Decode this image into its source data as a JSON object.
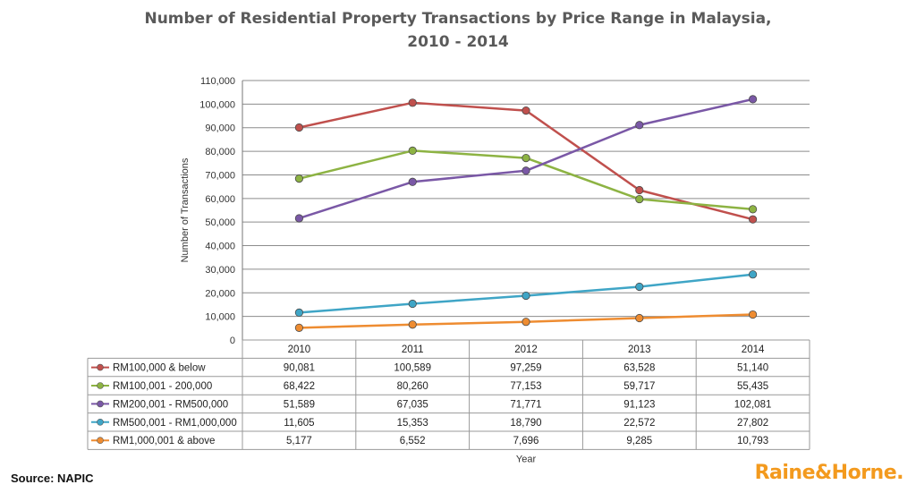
{
  "title_line1": "Number of Residential Property Transactions by Price Range in Malaysia,",
  "title_line2": "2010 - 2014",
  "source": "Source: NAPIC",
  "brand": "Raine&Horne.",
  "chart_data": {
    "type": "line",
    "title": "Number of Residential Property Transactions by Price Range in Malaysia, 2010 - 2014",
    "xlabel": "Year",
    "ylabel": "Number of Transactions",
    "ylim": [
      0,
      110000
    ],
    "yticks": [
      "0",
      "10,000",
      "20,000",
      "30,000",
      "40,000",
      "50,000",
      "60,000",
      "70,000",
      "80,000",
      "90,000",
      "100,000",
      "110,000"
    ],
    "grid": true,
    "legend": "data table below chart",
    "categories": [
      "2010",
      "2011",
      "2012",
      "2013",
      "2014"
    ],
    "series": [
      {
        "name": "RM100,000 & below",
        "color": "#c0504d",
        "values": [
          90081,
          100589,
          97259,
          63528,
          51140
        ],
        "labels": [
          "90,081",
          "100,589",
          "97,259",
          "63,528",
          "51,140"
        ]
      },
      {
        "name": "RM100,001 - 200,000",
        "color": "#8db343",
        "values": [
          68422,
          80260,
          77153,
          59717,
          55435
        ],
        "labels": [
          "68,422",
          "80,260",
          "77,153",
          "59,717",
          "55,435"
        ]
      },
      {
        "name": "RM200,001 - RM500,000",
        "color": "#7a58a6",
        "values": [
          51589,
          67035,
          71771,
          91123,
          102081
        ],
        "labels": [
          "51,589",
          "67,035",
          "71,771",
          "91,123",
          "102,081"
        ]
      },
      {
        "name": "RM500,001 - RM1,000,000",
        "color": "#3fa5c6",
        "values": [
          11605,
          15353,
          18790,
          22572,
          27802
        ],
        "labels": [
          "11,605",
          "15,353",
          "18,790",
          "22,572",
          "27,802"
        ]
      },
      {
        "name": "RM1,000,001 & above",
        "color": "#ee8c31",
        "values": [
          5177,
          6552,
          7696,
          9285,
          10793
        ],
        "labels": [
          "5,177",
          "6,552",
          "7,696",
          "9,285",
          "10,793"
        ]
      }
    ]
  }
}
